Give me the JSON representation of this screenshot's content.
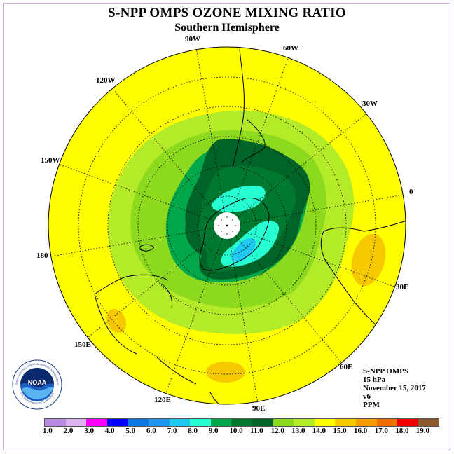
{
  "header": {
    "title": "S-NPP OMPS OZONE MIXING RATIO",
    "subtitle": "Southern Hemisphere"
  },
  "map": {
    "projection": "south-polar-stereographic",
    "background_color": "#ffff00",
    "longitude_labels": [
      "90W",
      "60W",
      "30W",
      "0",
      "30E",
      "60E",
      "90E",
      "120E",
      "150E",
      "180",
      "150W",
      "120W"
    ]
  },
  "info": {
    "instrument": "S-NPP OMPS",
    "level": "15 hPa",
    "date": "November 15, 2017",
    "version": "v6",
    "units": "PPM"
  },
  "colorbar": {
    "colors": [
      "#b78ae6",
      "#dcb4f0",
      "#ff00ff",
      "#0000ff",
      "#0a78e6",
      "#1e96f0",
      "#1ec8f0",
      "#26ffd2",
      "#00a84a",
      "#007830",
      "#006428",
      "#8cd91e",
      "#b4eb28",
      "#ffff00",
      "#f5c800",
      "#f59b00",
      "#f06e00",
      "#f50000",
      "#8b5a2b"
    ],
    "labels": [
      "1.0",
      "2.0",
      "3.0",
      "4.0",
      "5.0",
      "6.0",
      "7.0",
      "8.0",
      "9.0",
      "10.0",
      "11.0",
      "12.0",
      "13.0",
      "14.0",
      "15.0",
      "16.0",
      "17.0",
      "18.0",
      "19.0"
    ]
  },
  "logo": {
    "text": "NOAA",
    "ring_text": "NATIONAL OCEANIC AND ATMOSPHERIC ADMINISTRATION",
    "bottom_text": "U.S. DEPARTMENT OF COMMERCE"
  }
}
